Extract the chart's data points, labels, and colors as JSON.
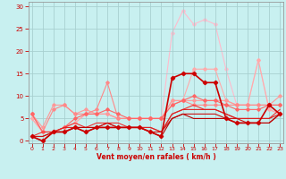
{
  "xlabel": "Vent moyen/en rafales ( km/h )",
  "background_color": "#c8f0f0",
  "grid_color": "#a8d0d0",
  "xlim": [
    -0.3,
    23.3
  ],
  "ylim": [
    -0.5,
    31
  ],
  "yticks": [
    0,
    5,
    10,
    15,
    20,
    25,
    30
  ],
  "xticks": [
    0,
    1,
    2,
    3,
    4,
    5,
    6,
    7,
    8,
    9,
    10,
    11,
    12,
    13,
    14,
    15,
    16,
    17,
    18,
    19,
    20,
    21,
    22,
    23
  ],
  "tick_color": "#cc0000",
  "label_color": "#cc0000",
  "lines": [
    {
      "y": [
        5,
        2,
        2,
        3,
        4,
        6,
        6,
        6,
        5,
        5,
        5,
        5,
        5,
        24,
        29,
        26,
        27,
        26,
        16,
        8,
        8,
        18,
        7,
        6
      ],
      "color": "#ffbbcc",
      "lw": 0.8,
      "marker": "D",
      "ms": 1.8
    },
    {
      "y": [
        5,
        2,
        2,
        3,
        4,
        6,
        6,
        6,
        5,
        5,
        5,
        5,
        5,
        9,
        9,
        16,
        16,
        16,
        9,
        8,
        8,
        18,
        7,
        6
      ],
      "color": "#ffaaaa",
      "lw": 0.8,
      "marker": "D",
      "ms": 1.8
    },
    {
      "y": [
        6,
        3,
        8,
        8,
        6,
        7,
        6,
        6,
        5,
        5,
        5,
        5,
        5,
        9,
        9,
        9,
        9,
        9,
        9,
        8,
        8,
        8,
        8,
        10
      ],
      "color": "#ff9999",
      "lw": 0.8,
      "marker": "D",
      "ms": 1.8
    },
    {
      "y": [
        6,
        2,
        7,
        8,
        6,
        6,
        7,
        13,
        5,
        5,
        5,
        5,
        5,
        8,
        9,
        8,
        8,
        8,
        8,
        8,
        8,
        8,
        8,
        8
      ],
      "color": "#ff8888",
      "lw": 0.8,
      "marker": "D",
      "ms": 1.8
    },
    {
      "y": [
        6,
        2,
        2,
        3,
        5,
        6,
        6,
        7,
        6,
        5,
        5,
        5,
        5,
        8,
        9,
        10,
        9,
        9,
        8,
        7,
        7,
        7,
        8,
        8
      ],
      "color": "#ff6666",
      "lw": 0.8,
      "marker": "D",
      "ms": 1.8
    },
    {
      "y": [
        1,
        2,
        2,
        3,
        4,
        3,
        4,
        4,
        4,
        3,
        3,
        3,
        2,
        6,
        7,
        8,
        7,
        7,
        6,
        5,
        5,
        5,
        5,
        7
      ],
      "color": "#ee3333",
      "lw": 0.8,
      "marker": null,
      "ms": 0
    },
    {
      "y": [
        1,
        1,
        2,
        3,
        3,
        3,
        3,
        4,
        3,
        3,
        3,
        3,
        2,
        6,
        7,
        7,
        7,
        7,
        6,
        5,
        5,
        5,
        5,
        6
      ],
      "color": "#dd2222",
      "lw": 0.8,
      "marker": null,
      "ms": 0
    },
    {
      "y": [
        1,
        1,
        2,
        2,
        3,
        2,
        3,
        4,
        3,
        3,
        3,
        2,
        2,
        5,
        6,
        6,
        6,
        6,
        5,
        5,
        4,
        4,
        4,
        6
      ],
      "color": "#cc1111",
      "lw": 0.8,
      "marker": null,
      "ms": 0
    },
    {
      "y": [
        1,
        0,
        2,
        2,
        3,
        3,
        3,
        3,
        3,
        3,
        3,
        2,
        1,
        5,
        6,
        5,
        5,
        5,
        5,
        4,
        4,
        4,
        4,
        6
      ],
      "color": "#bb0000",
      "lw": 0.8,
      "marker": null,
      "ms": 0
    },
    {
      "y": [
        1,
        0,
        2,
        2,
        3,
        2,
        3,
        3,
        3,
        3,
        3,
        2,
        1,
        14,
        15,
        15,
        13,
        13,
        5,
        4,
        4,
        4,
        8,
        6
      ],
      "color": "#cc0000",
      "lw": 1.2,
      "marker": "D",
      "ms": 2.2
    }
  ]
}
